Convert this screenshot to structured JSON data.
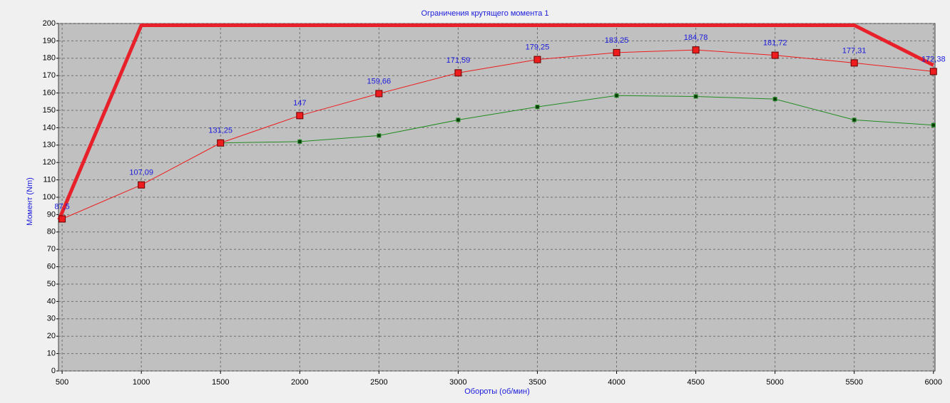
{
  "chart_data": {
    "type": "line",
    "title": "Ограничения крутящего момента 1",
    "x_label": "Обороты (об/мин)",
    "y_label": "Момент (Nm)",
    "xlim": [
      477,
      6010
    ],
    "ylim": [
      0,
      200
    ],
    "xticks": [
      500,
      1000,
      1500,
      2000,
      2500,
      3000,
      3500,
      4000,
      4500,
      5000,
      5500,
      6000
    ],
    "yticks": [
      0,
      10,
      20,
      30,
      40,
      50,
      60,
      70,
      80,
      90,
      100,
      110,
      120,
      130,
      140,
      150,
      160,
      170,
      180,
      190,
      200
    ],
    "grid": true,
    "series": [
      {
        "color": "#e8202a",
        "width": 5,
        "marker": "none",
        "x": [
          480,
          1000,
          5500,
          6000
        ],
        "values": [
          87,
          199,
          199,
          176
        ]
      },
      {
        "color": "#228b22",
        "width": 1,
        "marker": "small",
        "x": [
          1500,
          2000,
          2500,
          3000,
          3500,
          4000,
          4500,
          5000,
          5500,
          6000
        ],
        "values": [
          131.25,
          132,
          135.5,
          144.5,
          152,
          158.5,
          158,
          156.5,
          144.5,
          141.5
        ]
      },
      {
        "color": "#ee1c1c",
        "width": 1,
        "marker": "large",
        "x": [
          500,
          1000,
          1500,
          2000,
          2500,
          3000,
          3500,
          4000,
          4500,
          5000,
          5500,
          6000
        ],
        "values": [
          87.5,
          107.09,
          131.25,
          147,
          159.66,
          171.59,
          179.25,
          183.25,
          184.78,
          181.72,
          177.31,
          172.38
        ],
        "value_labels": [
          "87,5",
          "107,09",
          "131,25",
          "147",
          "159,66",
          "171,59",
          "179,25",
          "183,25",
          "184,78",
          "181,72",
          "177,31",
          "172,38"
        ]
      }
    ]
  }
}
